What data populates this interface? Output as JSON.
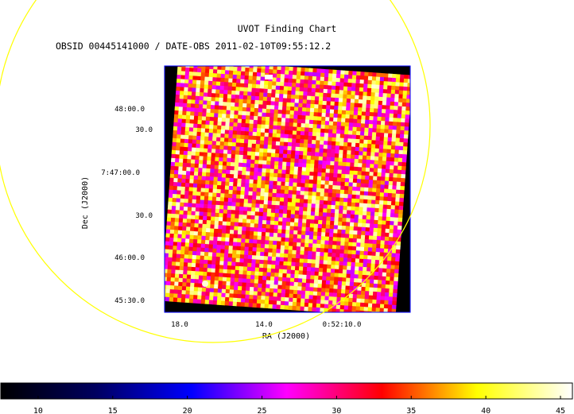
{
  "chart_data": {
    "type": "heatmap",
    "title": "UVOT Finding Chart",
    "subtitle": "OBSID 00445141000 / DATE-OBS 2011-02-10T09:55:12.2",
    "xlabel": "RA (J2000)",
    "ylabel": "Dec (J2000)",
    "x_tick_labels": [
      "18.0",
      "14.0",
      "0:52:10.0"
    ],
    "y_tick_labels": [
      "48:00.0",
      "30.0",
      "7:47:00.0",
      "30.0",
      "46:00.0",
      "45:30.0"
    ],
    "colorbar": {
      "ticks": [
        10,
        15,
        20,
        25,
        30,
        35,
        40,
        45
      ],
      "range": [
        7.5,
        45.8
      ],
      "colormap": [
        "#000000",
        "#000060",
        "#0000ff",
        "#ff00ff",
        "#ff0000",
        "#ffff00",
        "#ffffff"
      ]
    },
    "pixel_value_range": [
      25,
      45
    ],
    "frame_color": "#0000ff",
    "overlay_circle_color": "#ffff00"
  }
}
